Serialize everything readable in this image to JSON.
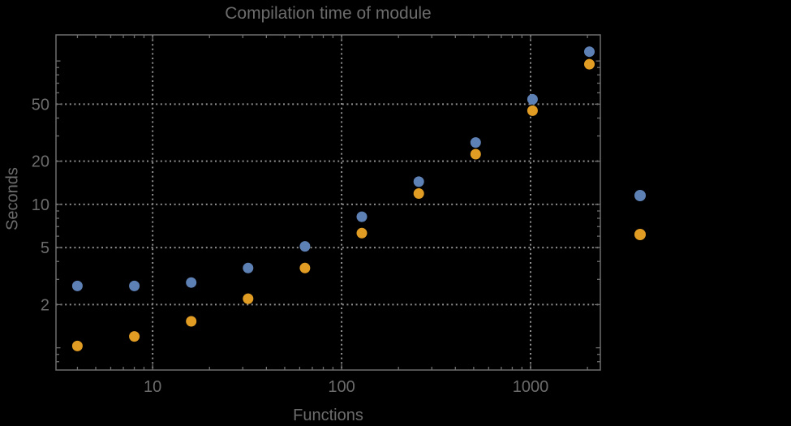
{
  "chart_data": {
    "type": "scatter",
    "title": "Compilation time of module",
    "xlabel": "Functions",
    "ylabel": "Seconds",
    "xscale": "log",
    "yscale": "log",
    "xlim": [
      3.08,
      2340
    ],
    "ylim": [
      0.7,
      152
    ],
    "x_major_ticks": [
      10,
      100,
      1000
    ],
    "x_minor_ticks": [
      4,
      5,
      6,
      7,
      8,
      9,
      20,
      30,
      40,
      50,
      60,
      70,
      80,
      90,
      200,
      300,
      400,
      500,
      600,
      700,
      800,
      900,
      2000
    ],
    "y_major_ticks": [
      2,
      5,
      10,
      20,
      50
    ],
    "y_medium_ticks": [
      1,
      100
    ],
    "y_minor_ticks": [
      0.8,
      0.9,
      3,
      4,
      6,
      7,
      8,
      9,
      30,
      40,
      60,
      70,
      80,
      90
    ],
    "grid": "dotted lines at major ticks",
    "legend_position": "right-outside",
    "x": [
      4,
      8,
      16,
      32,
      64,
      128,
      256,
      512,
      1024,
      2048
    ],
    "series": [
      {
        "name": "blue",
        "color": "#5E81B5",
        "values": [
          2.7,
          2.7,
          2.85,
          3.6,
          5.1,
          8.2,
          14.4,
          27,
          54,
          116
        ]
      },
      {
        "name": "orange",
        "color": "#E19C24",
        "values": [
          1.03,
          1.2,
          1.53,
          2.2,
          3.6,
          6.3,
          11.9,
          22.4,
          45,
          95
        ]
      }
    ],
    "legend": {
      "markers": [
        {
          "series": "blue",
          "color": "#5E81B5"
        },
        {
          "series": "orange",
          "color": "#E19C24"
        }
      ]
    }
  },
  "colors": {
    "background": "#000000",
    "frame": "#6e6e6e",
    "grid": "#8f8f8f",
    "text": "#6c6c6c",
    "series_blue": "#5E81B5",
    "series_orange": "#E19C24"
  }
}
